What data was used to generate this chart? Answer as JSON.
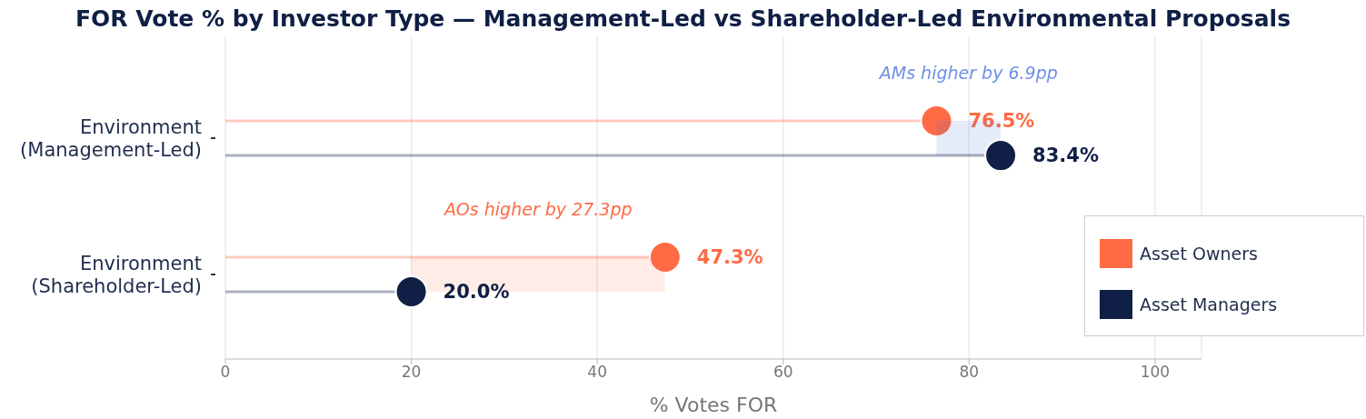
{
  "chart_data": {
    "type": "lollipop",
    "orientation": "horizontal",
    "title": "FOR Vote % by Investor Type — Management-Led vs Shareholder-Led Environmental Proposals",
    "xlabel": "% Votes FOR",
    "categories": [
      "Environment\n(Management-Led)",
      "Environment\n(Shareholder-Led)"
    ],
    "series": [
      {
        "name": "Asset Owners",
        "color": "#ff6b45",
        "values": [
          76.5,
          47.3
        ],
        "value_labels": [
          "76.5%",
          "47.3%"
        ]
      },
      {
        "name": "Asset Managers",
        "color": "#0f1f45",
        "values": [
          83.4,
          20.0
        ],
        "value_labels": [
          "83.4%",
          "20.0%"
        ]
      }
    ],
    "annotations": [
      "AMs higher by 6.9pp",
      "AOs higher by 27.3pp"
    ],
    "xlim": [
      0,
      105
    ],
    "xticks": [
      0,
      20,
      40,
      60,
      80,
      100
    ],
    "grid": "x",
    "legend": "right",
    "marker": "circle"
  }
}
